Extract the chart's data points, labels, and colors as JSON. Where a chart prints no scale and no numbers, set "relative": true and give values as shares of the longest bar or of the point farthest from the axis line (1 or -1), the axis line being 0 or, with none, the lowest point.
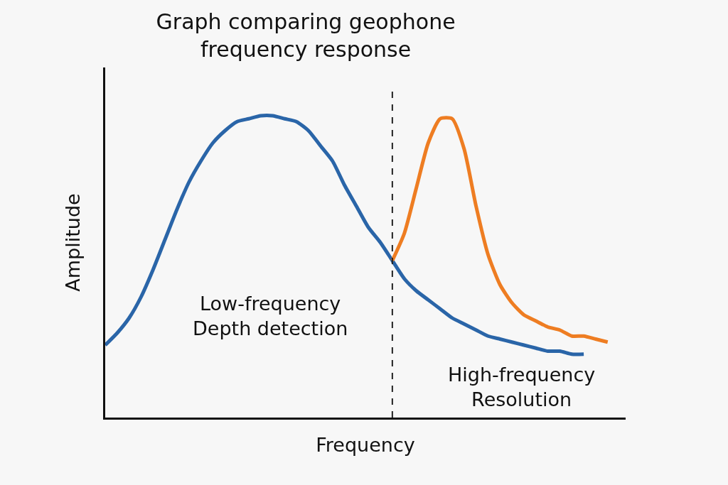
{
  "chart_data": {
    "type": "line",
    "relative": true,
    "title": "Graph comparing geophone\nfrequency response",
    "xlabel": "Frequency",
    "ylabel": "Amplitude",
    "categories": [
      null,
      null,
      null,
      null,
      null,
      null,
      null,
      null,
      null,
      null,
      null,
      null,
      null,
      null,
      null,
      null,
      null,
      null,
      null,
      null,
      null,
      null,
      null,
      null,
      null,
      null,
      null,
      null,
      null,
      null,
      null,
      null,
      null,
      null,
      null,
      null,
      null,
      null,
      null,
      null,
      null,
      null,
      null
    ],
    "series": [
      {
        "color": "#2a65a8",
        "values": [
          0.24,
          0.28,
          0.33,
          0.4,
          0.49,
          0.59,
          0.69,
          0.78,
          0.85,
          0.91,
          0.95,
          0.98,
          0.99,
          1.0,
          1.0,
          0.99,
          0.98,
          0.95,
          0.9,
          0.85,
          0.77,
          0.7,
          0.63,
          0.58,
          0.52,
          0.46,
          0.42,
          0.39,
          0.36,
          0.33,
          0.31,
          0.29,
          0.27,
          0.26,
          0.25,
          0.24,
          0.23,
          0.22,
          0.22,
          0.21,
          0.21,
          null,
          null
        ]
      },
      {
        "color": "#ee7d22",
        "values": [
          null,
          null,
          null,
          null,
          null,
          null,
          null,
          null,
          null,
          null,
          null,
          null,
          null,
          null,
          null,
          null,
          null,
          null,
          null,
          null,
          null,
          null,
          null,
          null,
          0.52,
          0.61,
          0.76,
          0.91,
          0.99,
          0.99,
          0.89,
          0.7,
          0.54,
          0.44,
          0.38,
          0.34,
          0.32,
          0.3,
          0.29,
          0.27,
          0.27,
          0.26,
          0.25
        ]
      }
    ],
    "annotations": [
      "Low-frequency\nDepth detection",
      "High-frequency\nResolution"
    ],
    "grid": false,
    "marker": "none",
    "line_style": "solid"
  }
}
